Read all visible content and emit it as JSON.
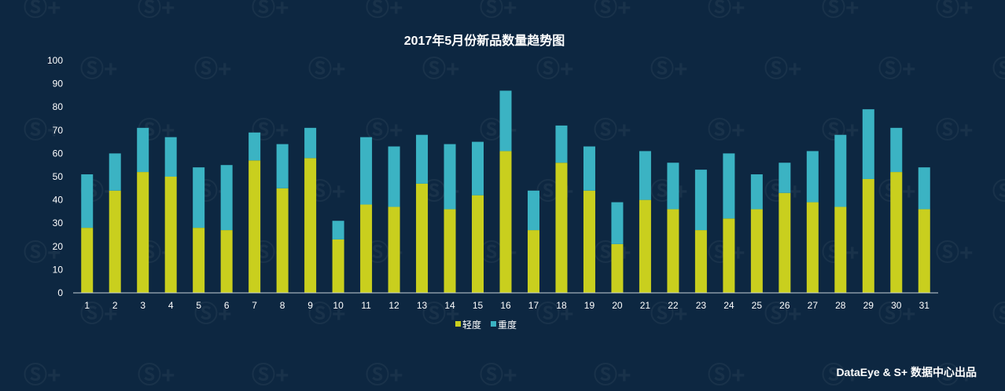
{
  "footer": {
    "credit": "DataEye & S+ 数据中心出品"
  },
  "colors": {
    "background": "#0d2741",
    "light_series": "#c9cf1e",
    "heavy_series": "#3bb3c3",
    "text": "#ffffff",
    "axis": "#c8d0d8"
  },
  "chart_data": {
    "type": "bar",
    "stacked": true,
    "title": "2017年5月份新品数量趋势图",
    "xlabel": "",
    "ylabel": "",
    "ylim": [
      0,
      100
    ],
    "yticks": [
      0,
      10,
      20,
      30,
      40,
      50,
      60,
      70,
      80,
      90,
      100
    ],
    "categories": [
      "1",
      "2",
      "3",
      "4",
      "5",
      "6",
      "7",
      "8",
      "9",
      "10",
      "11",
      "12",
      "13",
      "14",
      "15",
      "16",
      "17",
      "18",
      "19",
      "20",
      "21",
      "22",
      "23",
      "24",
      "25",
      "26",
      "27",
      "28",
      "29",
      "30",
      "31"
    ],
    "series": [
      {
        "name": "轻度",
        "color": "#c9cf1e",
        "values": [
          28,
          44,
          52,
          50,
          28,
          27,
          57,
          45,
          58,
          23,
          38,
          37,
          47,
          36,
          42,
          61,
          27,
          56,
          44,
          21,
          40,
          36,
          27,
          32,
          36,
          43,
          39,
          37,
          49,
          52,
          36
        ]
      },
      {
        "name": "重度",
        "color": "#3bb3c3",
        "values": [
          23,
          16,
          19,
          17,
          26,
          28,
          12,
          19,
          13,
          8,
          29,
          26,
          21,
          28,
          23,
          26,
          17,
          16,
          19,
          18,
          21,
          20,
          26,
          28,
          15,
          13,
          22,
          31,
          30,
          19,
          18
        ]
      }
    ],
    "legend_position": "bottom-center",
    "grid": false
  }
}
